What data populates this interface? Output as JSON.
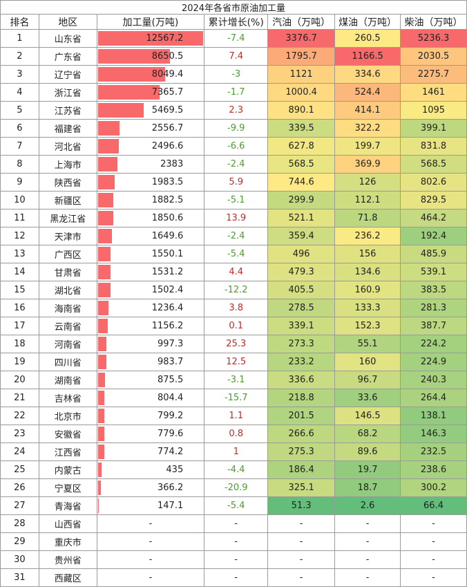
{
  "title": "2024年各省市原油加工量",
  "headers": [
    "排名",
    "地区",
    "加工量(万吨)",
    "累计增长(%)",
    "汽油（万吨）",
    "煤油（万吨）",
    "柴油（万吨）"
  ],
  "rows": [
    {
      "rank": "1",
      "region": "山东省",
      "vol": "12567.2",
      "growth": "-7.4",
      "gas": "3376.7",
      "ker": "260.5",
      "die": "5236.3"
    },
    {
      "rank": "2",
      "region": "广东省",
      "vol": "8650.5",
      "growth": "7.4",
      "gas": "1795.7",
      "ker": "1166.5",
      "die": "2030.5"
    },
    {
      "rank": "3",
      "region": "辽宁省",
      "vol": "8049.4",
      "growth": "-3",
      "gas": "1121",
      "ker": "334.6",
      "die": "2275.7"
    },
    {
      "rank": "4",
      "region": "浙江省",
      "vol": "7365.7",
      "growth": "-1.7",
      "gas": "1000.4",
      "ker": "524.4",
      "die": "1461"
    },
    {
      "rank": "5",
      "region": "江苏省",
      "vol": "5469.5",
      "growth": "2.3",
      "gas": "890.1",
      "ker": "414.1",
      "die": "1095"
    },
    {
      "rank": "6",
      "region": "福建省",
      "vol": "2556.7",
      "growth": "-9.9",
      "gas": "339.5",
      "ker": "322.2",
      "die": "399.1"
    },
    {
      "rank": "7",
      "region": "河北省",
      "vol": "2496.6",
      "growth": "-6.6",
      "gas": "627.8",
      "ker": "199.7",
      "die": "831.8"
    },
    {
      "rank": "8",
      "region": "上海市",
      "vol": "2383",
      "growth": "-2.4",
      "gas": "568.5",
      "ker": "369.9",
      "die": "568.5"
    },
    {
      "rank": "9",
      "region": "陕西省",
      "vol": "1983.5",
      "growth": "5.9",
      "gas": "744.6",
      "ker": "126",
      "die": "802.6"
    },
    {
      "rank": "10",
      "region": "新疆区",
      "vol": "1882.5",
      "growth": "-5.1",
      "gas": "299.9",
      "ker": "112.1",
      "die": "829.5"
    },
    {
      "rank": "11",
      "region": "黑龙江省",
      "vol": "1850.6",
      "growth": "13.9",
      "gas": "521.1",
      "ker": "71.8",
      "die": "464.2"
    },
    {
      "rank": "12",
      "region": "天津市",
      "vol": "1649.6",
      "growth": "-2.4",
      "gas": "359.4",
      "ker": "236.2",
      "die": "192.4"
    },
    {
      "rank": "13",
      "region": "广西区",
      "vol": "1550.1",
      "growth": "-5.4",
      "gas": "496",
      "ker": "156",
      "die": "485.9"
    },
    {
      "rank": "14",
      "region": "甘肃省",
      "vol": "1531.2",
      "growth": "4.4",
      "gas": "479.3",
      "ker": "134.6",
      "die": "539.1"
    },
    {
      "rank": "15",
      "region": "湖北省",
      "vol": "1502.4",
      "growth": "-12.2",
      "gas": "405.5",
      "ker": "160.9",
      "die": "383.5"
    },
    {
      "rank": "16",
      "region": "海南省",
      "vol": "1236.4",
      "growth": "3.8",
      "gas": "278.5",
      "ker": "133.3",
      "die": "281.3"
    },
    {
      "rank": "17",
      "region": "云南省",
      "vol": "1156.2",
      "growth": "0.1",
      "gas": "339.1",
      "ker": "152.3",
      "die": "387.7"
    },
    {
      "rank": "18",
      "region": "河南省",
      "vol": "997.3",
      "growth": "25.3",
      "gas": "273.3",
      "ker": "55.1",
      "die": "224.2"
    },
    {
      "rank": "19",
      "region": "四川省",
      "vol": "983.7",
      "growth": "12.5",
      "gas": "233.2",
      "ker": "160",
      "die": "224.9"
    },
    {
      "rank": "20",
      "region": "湖南省",
      "vol": "875.5",
      "growth": "-3.1",
      "gas": "336.6",
      "ker": "96.7",
      "die": "240.3"
    },
    {
      "rank": "21",
      "region": "吉林省",
      "vol": "804.4",
      "growth": "-15.7",
      "gas": "218.8",
      "ker": "33.6",
      "die": "264.4"
    },
    {
      "rank": "22",
      "region": "北京市",
      "vol": "799.2",
      "growth": "1.1",
      "gas": "201.5",
      "ker": "146.5",
      "die": "138.1"
    },
    {
      "rank": "23",
      "region": "安徽省",
      "vol": "779.6",
      "growth": "0.8",
      "gas": "266.6",
      "ker": "68.2",
      "die": "146.3"
    },
    {
      "rank": "24",
      "region": "江西省",
      "vol": "774.2",
      "growth": "1",
      "gas": "275.3",
      "ker": "89.6",
      "die": "232.5"
    },
    {
      "rank": "25",
      "region": "内蒙古",
      "vol": "435",
      "growth": "-4.4",
      "gas": "186.4",
      "ker": "19.7",
      "die": "238.6"
    },
    {
      "rank": "26",
      "region": "宁夏区",
      "vol": "366.2",
      "growth": "-20.9",
      "gas": "325.1",
      "ker": "18.7",
      "die": "300.2"
    },
    {
      "rank": "27",
      "region": "青海省",
      "vol": "147.1",
      "growth": "-5.4",
      "gas": "51.3",
      "ker": "2.6",
      "die": "66.4"
    },
    {
      "rank": "28",
      "region": "山西省",
      "vol": "-",
      "growth": "-",
      "gas": "-",
      "ker": "-",
      "die": "-"
    },
    {
      "rank": "29",
      "region": "重庆市",
      "vol": "-",
      "growth": "-",
      "gas": "-",
      "ker": "-",
      "die": "-"
    },
    {
      "rank": "30",
      "region": "贵州省",
      "vol": "-",
      "growth": "-",
      "gas": "-",
      "ker": "-",
      "die": "-"
    },
    {
      "rank": "31",
      "region": "西藏区",
      "vol": "-",
      "growth": "-",
      "gas": "-",
      "ker": "-",
      "die": "-"
    }
  ]
}
